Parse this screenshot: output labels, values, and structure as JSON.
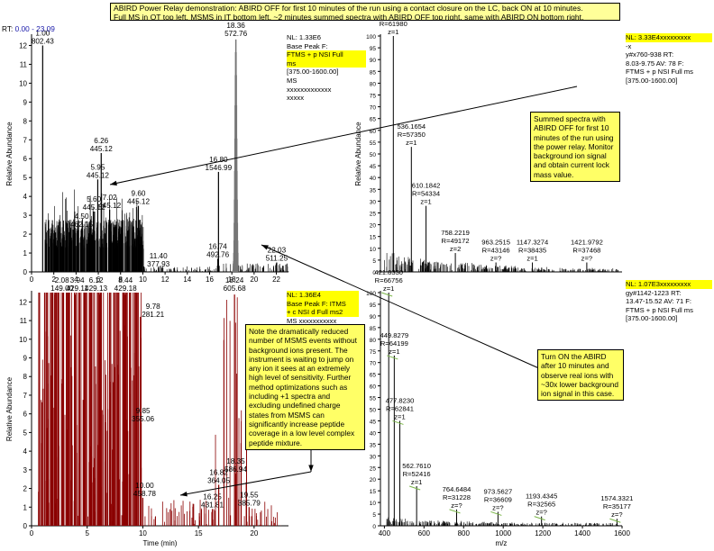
{
  "banner": {
    "line1": "ABIRD Power Relay demonstration: ABIRD OFF for first 10 minutes of the run using a contact closure on the LC, back ON at 10 minutes.",
    "line2": "Full MS in OT top left. MSMS in IT bottom left. ~2 minutes summed spectra with ABIRD OFF top right, same with ABIRD ON bottom right."
  },
  "rt_range": {
    "label": "RT:",
    "value": "0.00 - 23.09"
  },
  "colors": {
    "chrom_top": "#000000",
    "chrom_bottom": "#8b0000",
    "spectrum": "#000000",
    "note_bg": "#ffff66",
    "highlight": "#ffff00"
  },
  "panels": {
    "top_left": {
      "meta": [
        "NL: 1.33E6",
        "Base Peak F:",
        "FTMS + p NSI Full",
        "ms",
        "[375.00-1600.00]",
        "MS",
        "xxxxxxxxxxxxx",
        "xxxxx"
      ],
      "highlight_rows": [
        2,
        3
      ]
    },
    "bottom_left": {
      "meta": [
        "NL: 1.36E4",
        "Base Peak F: ITMS",
        "+ c NSI d Full ms2",
        "MS xxxxxxxxxxx"
      ],
      "highlight_rows": [
        0,
        1,
        2
      ]
    },
    "top_right": {
      "meta": [
        "NL: 3.33E4xxxxxxxxx",
        "-x",
        "y#x760-938  RT:",
        "8.03-9.75  AV: 78  F:",
        "FTMS + p NSI Full ms",
        "[375.00-1600.00]"
      ],
      "highlight_rows": [
        0
      ]
    },
    "bottom_right": {
      "meta": [
        "NL: 1.07E3xxxxxxxxx",
        "gy#1142-1223  RT:",
        "13.47-15.52  AV: 71  F:",
        "FTMS + p NSI Full ms",
        "[375.00-1600.00]"
      ],
      "highlight_rows": [
        0
      ]
    }
  },
  "notes": {
    "summed_off": "Summed spectra with ABIRD OFF for first 10 minutes of the run using the power relay. Monitor background ion signal and obtain current lock mass value.",
    "turn_on": "Turn ON the ABIRD after 10 minutes and observe real ions with ~30x lower background ion signal in this case.",
    "msms": "Note the dramatically reduced number of MSMS events without background ions present. The instrument is waiting to jump on any ion it sees at an extremely high level of sensitivity. Further method optimizations such as including +1 spectra and excluding undefined charge states from MSMS can significantly increase peptide coverage in a low level complex peptide mixture."
  },
  "chart_data": [
    {
      "type": "line",
      "name": "chromatogram-top",
      "ylabel": "Relative Abundance",
      "xlabel": "",
      "xlim": [
        0,
        23.09
      ],
      "ylim": [
        0,
        12.5
      ],
      "x_ticks": [
        0,
        2,
        4,
        6,
        8,
        10,
        12,
        14,
        16,
        18,
        20,
        22
      ],
      "y_ticks": [
        0,
        1,
        2,
        3,
        4,
        5,
        6,
        7,
        8,
        9,
        10,
        11,
        12
      ],
      "peaks": [
        {
          "x": 1.0,
          "y": 12.0,
          "label": [
            "1.00",
            "802.43"
          ]
        },
        {
          "x": 6.26,
          "y": 6.3,
          "label": [
            "6.26",
            "445.12"
          ]
        },
        {
          "x": 5.95,
          "y": 4.9,
          "label": [
            "5.95",
            "445.12"
          ]
        },
        {
          "x": 5.6,
          "y": 3.2,
          "label": [
            "5.60",
            "445.12"
          ]
        },
        {
          "x": 4.5,
          "y": 2.3,
          "label": [
            "4.50",
            "462.15"
          ]
        },
        {
          "x": 7.02,
          "y": 3.3,
          "label": [
            "7.02",
            "445.12"
          ]
        },
        {
          "x": 9.6,
          "y": 3.5,
          "label": [
            "9.60",
            "445.12"
          ]
        },
        {
          "x": 11.4,
          "y": 0.2,
          "label": [
            "11.40",
            "377.93"
          ]
        },
        {
          "x": 16.74,
          "y": 0.7,
          "label": [
            "16.74",
            "492.76"
          ]
        },
        {
          "x": 16.8,
          "y": 5.3,
          "label": [
            "16.80",
            "1546.99"
          ]
        },
        {
          "x": 18.36,
          "y": 12.4,
          "label": [
            "18.36",
            "572.76"
          ]
        },
        {
          "x": 22.03,
          "y": 0.5,
          "label": [
            "22.03",
            "511.25"
          ]
        }
      ]
    },
    {
      "type": "line",
      "name": "chromatogram-bottom",
      "ylabel": "Relative Abundance",
      "xlabel": "Time (min)",
      "xlim": [
        0,
        23.09
      ],
      "ylim": [
        0,
        12.5
      ],
      "x_ticks": [
        0,
        5,
        10,
        15,
        20
      ],
      "y_ticks": [
        0,
        1,
        2,
        3,
        4,
        5,
        6,
        7,
        8,
        9,
        10,
        11,
        12
      ],
      "peaks": [
        {
          "x": 2.08,
          "y": 12.4,
          "label": [
            "2.08",
            "149.00"
          ]
        },
        {
          "x": 3.94,
          "y": 12.4,
          "label": [
            "3.94",
            "429.11"
          ]
        },
        {
          "x": 6.12,
          "y": 12.4,
          "label": [
            "6.12",
            "429.13"
          ]
        },
        {
          "x": 8.44,
          "y": 12.4,
          "label": [
            "8.44",
            "429.18"
          ]
        },
        {
          "x": 9.78,
          "y": 11.2,
          "label": [
            "9.78",
            "281.21"
          ]
        },
        {
          "x": 9.85,
          "y": 5.5,
          "label": [
            "9.85",
            "355.06"
          ]
        },
        {
          "x": 10.0,
          "y": 1.5,
          "label": [
            "10.00",
            "458.78"
          ]
        },
        {
          "x": 16.25,
          "y": 0.9,
          "label": [
            "16.25",
            "431.81"
          ]
        },
        {
          "x": 16.82,
          "y": 2.2,
          "label": [
            "16.82",
            "364.05"
          ]
        },
        {
          "x": 18.24,
          "y": 12.4,
          "label": [
            "18.24",
            "605.68"
          ]
        },
        {
          "x": 18.35,
          "y": 2.8,
          "label": [
            "18.35",
            "586.94"
          ]
        },
        {
          "x": 19.55,
          "y": 1.0,
          "label": [
            "19.55",
            "385.79"
          ]
        }
      ]
    },
    {
      "type": "bar",
      "name": "spectrum-top",
      "ylabel": "Relative Abundance",
      "xlabel": "",
      "xlim": [
        380,
        1600
      ],
      "ylim": [
        0,
        100
      ],
      "y_ticks": [
        0,
        5,
        10,
        15,
        20,
        25,
        30,
        35,
        40,
        45,
        50,
        55,
        60,
        65,
        70,
        75,
        80,
        85,
        90,
        95,
        100
      ],
      "peaks": [
        {
          "x": 445.12,
          "y": 100,
          "label": [
            "445.1200",
            "R=61980",
            "z=1"
          ]
        },
        {
          "x": 536.1654,
          "y": 53,
          "label": [
            "536.1654",
            "R=57350",
            "z=1"
          ]
        },
        {
          "x": 610.1842,
          "y": 28,
          "label": [
            "610.1842",
            "R=54334",
            "z=1"
          ]
        },
        {
          "x": 758.2219,
          "y": 8,
          "label": [
            "758.2219",
            "R=49172",
            "z=2"
          ]
        },
        {
          "x": 963.2515,
          "y": 4,
          "label": [
            "963.2515",
            "R=43146",
            "z=?"
          ]
        },
        {
          "x": 1147.3274,
          "y": 4,
          "label": [
            "1147.3274",
            "R=38435",
            "z=1"
          ]
        },
        {
          "x": 1421.9792,
          "y": 4,
          "label": [
            "1421.9792",
            "R=37468",
            "z=?"
          ]
        }
      ]
    },
    {
      "type": "bar",
      "name": "spectrum-bottom",
      "ylabel": "",
      "xlabel": "m/z",
      "xlim": [
        380,
        1600
      ],
      "ylim": [
        0,
        100
      ],
      "x_ticks": [
        400,
        600,
        800,
        1000,
        1200,
        1400,
        1600
      ],
      "y_ticks": [
        0,
        5,
        10,
        15,
        20,
        25,
        30,
        35,
        40,
        45,
        50,
        55,
        60,
        65,
        70,
        75,
        80,
        85,
        90,
        95,
        100
      ],
      "peaks": [
        {
          "x": 421.833,
          "y": 100,
          "label": [
            "421.8330",
            "R=66756",
            "z=1"
          ]
        },
        {
          "x": 449.8279,
          "y": 73,
          "label": [
            "449.8279",
            "R=64199",
            "z=1"
          ]
        },
        {
          "x": 477.823,
          "y": 45,
          "label": [
            "477.8230",
            "R=62841",
            "z=1"
          ]
        },
        {
          "x": 562.761,
          "y": 17,
          "label": [
            "562.7610",
            "R=52416",
            "z=1"
          ]
        },
        {
          "x": 764.6484,
          "y": 7,
          "label": [
            "764.6484",
            "R=31228",
            "z=?"
          ]
        },
        {
          "x": 973.5627,
          "y": 6,
          "label": [
            "973.5627",
            "R=36609",
            "z=?"
          ]
        },
        {
          "x": 1193.4345,
          "y": 4,
          "label": [
            "1193.4345",
            "R=32565",
            "z=?"
          ]
        },
        {
          "x": 1574.3321,
          "y": 3,
          "label": [
            "1574.3321",
            "R=35177",
            "z=?"
          ]
        }
      ]
    }
  ]
}
